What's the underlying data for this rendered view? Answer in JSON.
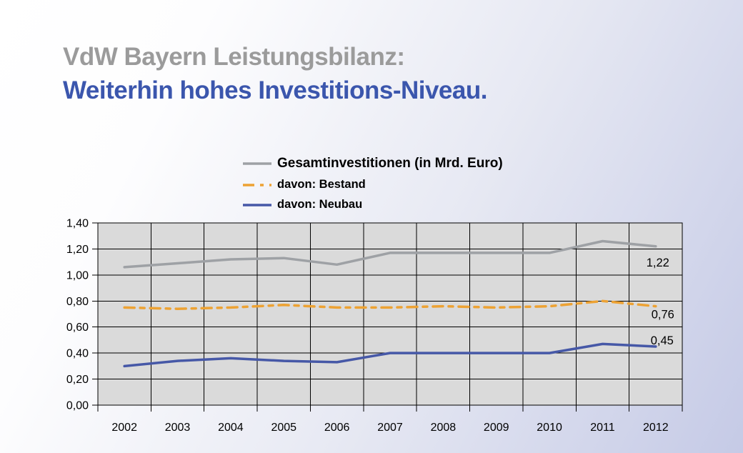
{
  "title": {
    "line1": "VdW Bayern Leistungsbilanz:",
    "line2": "Weiterhin hohes Investitions-Niveau."
  },
  "colors": {
    "title_line1": "#9b9b9b",
    "title_line2": "#3b56ad",
    "background_start": "#ffffff",
    "background_end": "#c5cae6",
    "plot_background": "#dadada",
    "gridline": "#000000",
    "series_gesamt": "#9ea1a5",
    "series_bestand": "#eda233",
    "series_neubau": "#4658a7"
  },
  "legend": {
    "items": [
      {
        "label": "Gesamtinvestitionen (in Mrd. Euro)",
        "key": "gesamt",
        "style": "solid"
      },
      {
        "label": "davon: Bestand",
        "key": "bestand",
        "style": "dashed"
      },
      {
        "label": "davon: Neubau",
        "key": "neubau",
        "style": "solid"
      }
    ]
  },
  "chart_data": {
    "type": "line",
    "title": "",
    "xlabel": "",
    "ylabel": "",
    "x": [
      "2002",
      "2003",
      "2004",
      "2005",
      "2006",
      "2007",
      "2008",
      "2009",
      "2010",
      "2011",
      "2012"
    ],
    "series": [
      {
        "name": "Gesamtinvestitionen (in Mrd. Euro)",
        "key": "gesamt",
        "values": [
          1.06,
          1.09,
          1.12,
          1.13,
          1.08,
          1.17,
          1.17,
          1.17,
          1.17,
          1.26,
          1.22
        ],
        "color": "#9ea1a5",
        "dash": null
      },
      {
        "name": "davon: Bestand",
        "key": "bestand",
        "values": [
          0.75,
          0.74,
          0.75,
          0.77,
          0.75,
          0.75,
          0.76,
          0.75,
          0.76,
          0.8,
          0.76
        ],
        "color": "#eda233",
        "dash": "14 8 6 8"
      },
      {
        "name": "davon: Neubau",
        "key": "neubau",
        "values": [
          0.3,
          0.34,
          0.36,
          0.34,
          0.33,
          0.4,
          0.4,
          0.4,
          0.4,
          0.47,
          0.45
        ],
        "color": "#4658a7",
        "dash": null
      }
    ],
    "ylim": [
      0,
      1.4
    ],
    "ytick_labels": [
      "0,00",
      "0,20",
      "0,40",
      "0,60",
      "0,80",
      "1,00",
      "1,20",
      "1,40"
    ],
    "grid": "both",
    "legend_position": "top",
    "annotations": [
      {
        "series": "gesamt",
        "text": "1,22"
      },
      {
        "series": "bestand",
        "text": "0,76"
      },
      {
        "series": "neubau",
        "text": "0,45"
      }
    ]
  }
}
